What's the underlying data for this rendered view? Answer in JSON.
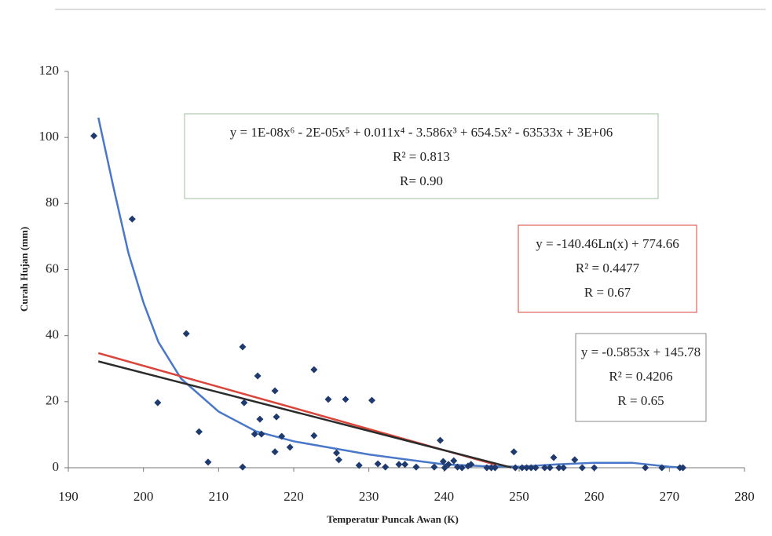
{
  "chart_data": {
    "type": "scatter",
    "x_label": "Temperatur Puncak Awan (K)",
    "y_label": "Curah Hujan (mm)",
    "xlim": [
      190,
      280
    ],
    "ylim": [
      0,
      120
    ],
    "xticks": [
      190,
      200,
      210,
      220,
      230,
      240,
      250,
      260,
      270,
      280
    ],
    "yticks": [
      0,
      20,
      40,
      60,
      80,
      100,
      120
    ],
    "color": "#1f3a6e",
    "x": [
      193.4,
      198.5,
      201.9,
      205.7,
      207.4,
      208.6,
      213.2,
      213.4,
      213.2,
      215.2,
      214.8,
      215.7,
      215.5,
      217.5,
      217.7,
      218.4,
      217.5,
      219.5,
      222.7,
      222.7,
      224.6,
      225.7,
      226.0,
      226.9,
      228.7,
      230.4,
      231.2,
      232.2,
      234.0,
      234.8,
      236.3,
      238.7,
      239.5,
      239.9,
      240.1,
      240.6,
      241.3,
      241.8,
      242.4,
      243.2,
      243.6,
      245.7,
      246.3,
      246.8,
      249.3,
      249.5,
      250.4,
      251.0,
      251.6,
      252.2,
      253.4,
      254.1,
      254.6,
      255.3,
      255.9,
      257.4,
      258.4,
      260.0,
      266.8,
      269.0,
      271.4,
      271.8
    ],
    "values": [
      100.5,
      75.3,
      19.7,
      40.6,
      10.9,
      1.7,
      36.6,
      19.7,
      0.2,
      27.8,
      10.2,
      10.2,
      14.7,
      23.3,
      15.4,
      9.5,
      4.8,
      6.2,
      29.7,
      9.7,
      20.7,
      4.5,
      2.4,
      20.7,
      0.7,
      20.4,
      1.2,
      0.2,
      1.0,
      1.0,
      0.2,
      0.2,
      8.3,
      1.9,
      0,
      1.0,
      2.1,
      0.2,
      0,
      0.5,
      1.0,
      0,
      0,
      0,
      4.8,
      0,
      0,
      0,
      0,
      0,
      0,
      0,
      3.1,
      0,
      0,
      2.4,
      0,
      0,
      0,
      0,
      0,
      0
    ],
    "trendlines": [
      {
        "color": "#4a78c8",
        "x": [
          194,
          196,
          198,
          200,
          202,
          205,
          208,
          210,
          215,
          220,
          225,
          230,
          235,
          240,
          245,
          250,
          255,
          260,
          265,
          270,
          272
        ],
        "values": [
          106,
          85,
          65,
          50,
          38,
          27,
          21,
          17,
          11,
          8,
          6,
          4,
          2.5,
          1,
          0.5,
          0.3,
          1,
          1.5,
          1.5,
          0.3,
          0
        ],
        "label": [
          "y = 1E-08x⁶ - 2E-05x⁵ + 0.011x⁴ - 3.586x³ + 654.5x² - 63533x + 3E+06",
          "R² = 0.813",
          "R= 0.90"
        ]
      },
      {
        "color": "#d9453a",
        "x": [
          194,
          247
        ],
        "values": [
          34.7,
          0.85
        ],
        "label": [
          "y = -140.46Ln(x) + 774.66",
          "R² = 0.4477",
          "R = 0.67"
        ]
      },
      {
        "color": "#2b2b2b",
        "x": [
          194,
          249
        ],
        "values": [
          32.2,
          0.04
        ],
        "label": [
          "y = -0.5853x + 145.78",
          "R² = 0.4206",
          "R = 0.65"
        ]
      }
    ]
  }
}
